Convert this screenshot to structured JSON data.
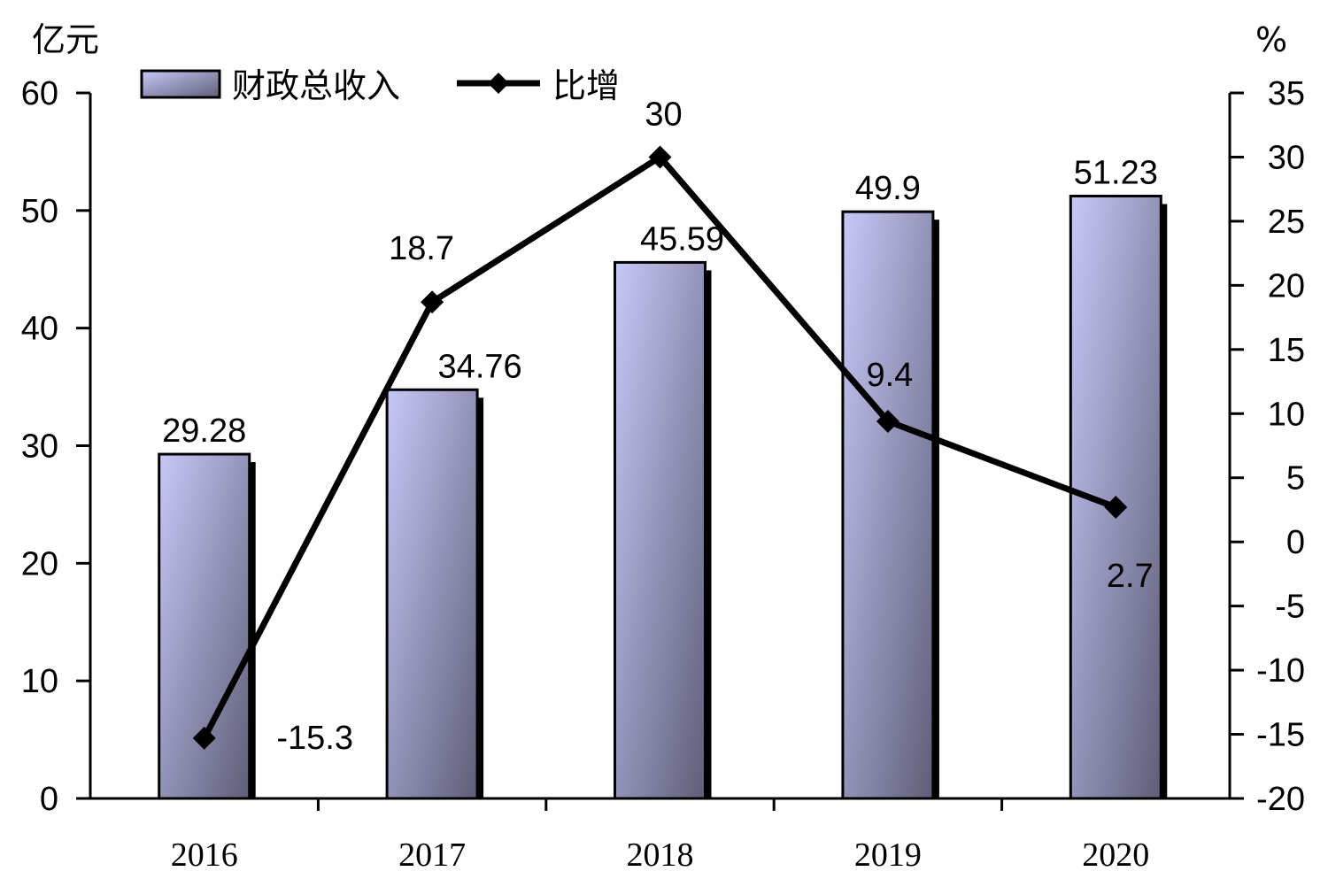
{
  "chart_data": {
    "type": "bar",
    "categories": [
      "2016",
      "2017",
      "2018",
      "2019",
      "2020"
    ],
    "series": [
      {
        "name": "财政总收入",
        "type": "bar",
        "axis": "left",
        "values": [
          29.28,
          34.76,
          45.59,
          49.9,
          51.23
        ],
        "labels": [
          "29.28",
          "34.76",
          "45.59",
          "49.9",
          "51.23"
        ]
      },
      {
        "name": "比增",
        "type": "line",
        "axis": "right",
        "values": [
          -15.3,
          18.7,
          30,
          9.4,
          2.7
        ],
        "labels": [
          "-15.3",
          "18.7",
          "30",
          "9.4",
          "2.7"
        ]
      }
    ],
    "y_left": {
      "unit": "亿元",
      "ylim": [
        0,
        60
      ],
      "ticks": [
        0,
        10,
        20,
        30,
        40,
        50,
        60
      ],
      "tick_labels": [
        "0",
        "10",
        "20",
        "30",
        "40",
        "50",
        "60"
      ]
    },
    "y_right": {
      "unit": "%",
      "ylim": [
        -20,
        35
      ],
      "ticks": [
        -20,
        -15,
        -10,
        -5,
        0,
        5,
        10,
        15,
        20,
        25,
        30,
        35
      ],
      "tick_labels": [
        "-20",
        "-15",
        "-10",
        "-5",
        "0",
        "5",
        "10",
        "15",
        "20",
        "25",
        "30",
        "35"
      ]
    },
    "grid": false,
    "legend_position": "top-left",
    "colors": {
      "bar_light": "#c8c8f8",
      "bar_dark": "#5e5e78",
      "line": "#000000"
    }
  }
}
